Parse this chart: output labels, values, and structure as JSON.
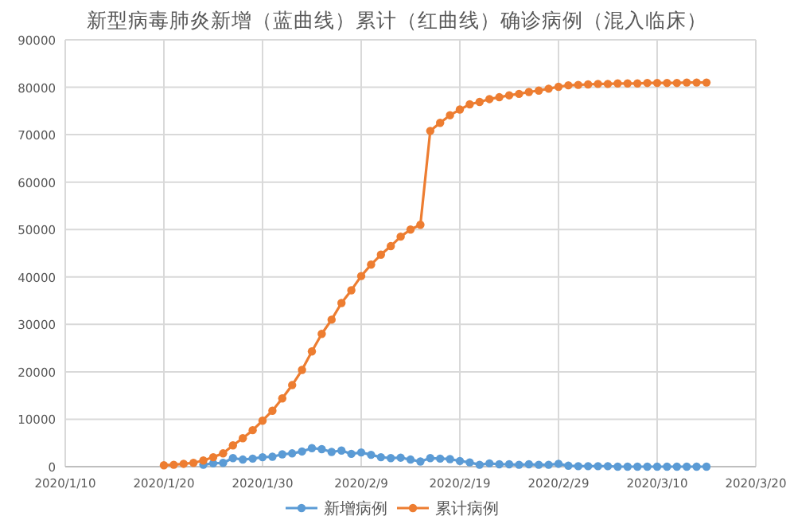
{
  "chart_data": {
    "type": "line",
    "title": "新型病毒肺炎新增（蓝曲线）累计（红曲线）确诊病例（混入临床）",
    "x": [
      "2020-01-20",
      "2020-01-21",
      "2020-01-22",
      "2020-01-23",
      "2020-01-24",
      "2020-01-25",
      "2020-01-26",
      "2020-01-27",
      "2020-01-28",
      "2020-01-29",
      "2020-01-30",
      "2020-01-31",
      "2020-02-01",
      "2020-02-02",
      "2020-02-03",
      "2020-02-04",
      "2020-02-05",
      "2020-02-06",
      "2020-02-07",
      "2020-02-08",
      "2020-02-09",
      "2020-02-10",
      "2020-02-11",
      "2020-02-12",
      "2020-02-13",
      "2020-02-14",
      "2020-02-15",
      "2020-02-16",
      "2020-02-17",
      "2020-02-18",
      "2020-02-19",
      "2020-02-20",
      "2020-02-21",
      "2020-02-22",
      "2020-02-23",
      "2020-02-24",
      "2020-02-25",
      "2020-02-26",
      "2020-02-27",
      "2020-02-28",
      "2020-02-29",
      "2020-03-01",
      "2020-03-02",
      "2020-03-03",
      "2020-03-04",
      "2020-03-05",
      "2020-03-06",
      "2020-03-07",
      "2020-03-08",
      "2020-03-09",
      "2020-03-10",
      "2020-03-11",
      "2020-03-12",
      "2020-03-13",
      "2020-03-14",
      "2020-03-15"
    ],
    "series": [
      {
        "name": "新增病例",
        "color": "#5b9bd5",
        "values": [
          null,
          null,
          null,
          null,
          400,
          700,
          800,
          1800,
          1500,
          1700,
          2000,
          2100,
          2600,
          2800,
          3200,
          3900,
          3700,
          3100,
          3400,
          2700,
          3000,
          2500,
          2000,
          1800,
          1900,
          1500,
          1100,
          1800,
          1700,
          1600,
          1200,
          900,
          400,
          700,
          500,
          500,
          400,
          500,
          400,
          400,
          600,
          200,
          100,
          100,
          100,
          100,
          0,
          0,
          0,
          0,
          0,
          0,
          0,
          0,
          0,
          0
        ]
      },
      {
        "name": "累计病例",
        "color": "#ed7d31",
        "values": [
          300,
          400,
          600,
          800,
          1300,
          2000,
          2800,
          4500,
          6000,
          7700,
          9700,
          11800,
          14400,
          17200,
          20400,
          24300,
          28000,
          31000,
          34500,
          37200,
          40200,
          42600,
          44700,
          46500,
          48500,
          50000,
          51000,
          70800,
          72500,
          74100,
          75300,
          76400,
          76900,
          77500,
          77900,
          78300,
          78600,
          79000,
          79300,
          79700,
          80100,
          80400,
          80500,
          80600,
          80700,
          80700,
          80800,
          80800,
          80800,
          80900,
          80900,
          80900,
          80900,
          81000,
          81000,
          81000
        ]
      }
    ],
    "xlim": [
      "2020-01-10",
      "2020-03-20"
    ],
    "xticks": [
      {
        "value": "2020-01-10",
        "label": "2020/1/10"
      },
      {
        "value": "2020-01-20",
        "label": "2020/1/20"
      },
      {
        "value": "2020-01-30",
        "label": "2020/1/30"
      },
      {
        "value": "2020-02-09",
        "label": "2020/2/9"
      },
      {
        "value": "2020-02-19",
        "label": "2020/2/19"
      },
      {
        "value": "2020-02-29",
        "label": "2020/2/29"
      },
      {
        "value": "2020-03-10",
        "label": "2020/3/10"
      },
      {
        "value": "2020-03-20",
        "label": "2020/3/20"
      }
    ],
    "ylim": [
      0,
      90000
    ],
    "yticks": [
      0,
      10000,
      20000,
      30000,
      40000,
      50000,
      60000,
      70000,
      80000,
      90000
    ],
    "grid": true,
    "legend": "bottom",
    "marker": "circle",
    "line_style": "solid"
  }
}
